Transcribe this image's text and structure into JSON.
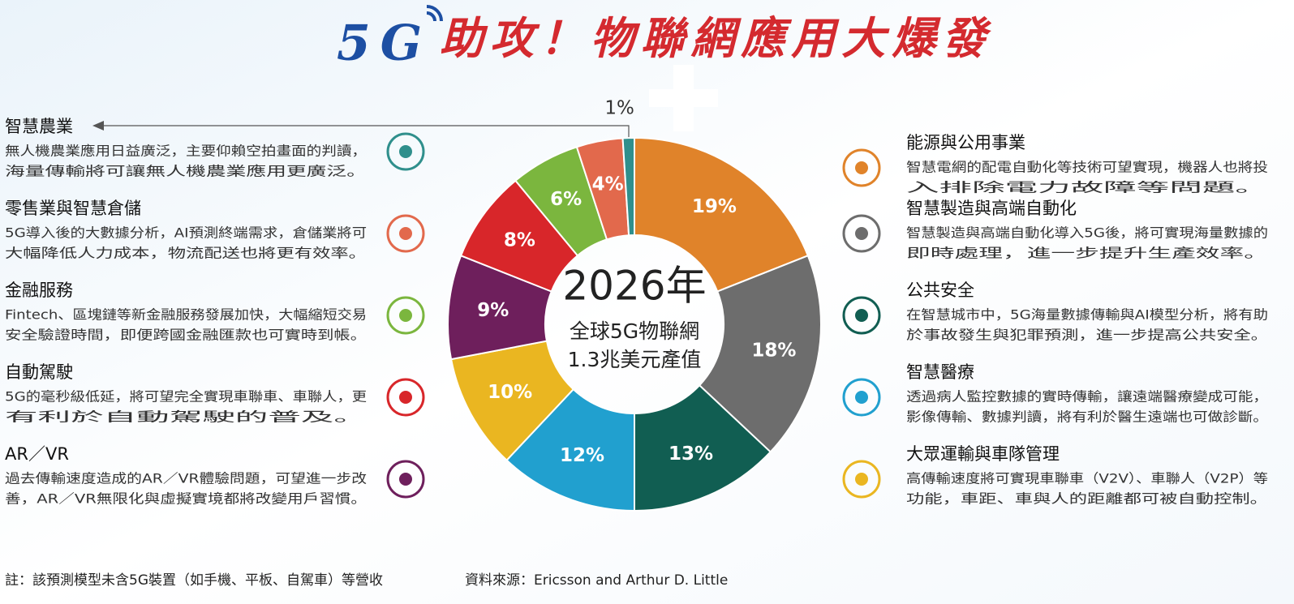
{
  "chart_data": {
    "type": "donut",
    "title_5g": "5G",
    "title": "助攻！物聯網應用大爆發",
    "center_text": [
      "2026年",
      "全球5G物聯網",
      "1.3兆美元產值"
    ],
    "categories": [
      "能源與公用事業",
      "智慧製造與高端自動化",
      "公共安全",
      "智慧醫療",
      "大眾運輸與車隊管理",
      "AR／VR",
      "自動駕駛",
      "金融服務",
      "零售業與智慧倉儲",
      "智慧農業"
    ],
    "values": [
      19,
      18,
      13,
      12,
      10,
      9,
      8,
      6,
      4,
      1
    ],
    "value_labels": [
      "19%",
      "18%",
      "13%",
      "12%",
      "10%",
      "9%",
      "8%",
      "6%",
      "4%",
      "1%"
    ],
    "colors": [
      "#e0832a",
      "#6d6d6d",
      "#115e52",
      "#21a0cf",
      "#eab621",
      "#6e1f5c",
      "#d8262a",
      "#7bb63e",
      "#e2694c",
      "#2f8f8c"
    ],
    "descriptions": [
      [
        "智慧電網的配電自動化等技術可望實現，機器人也將投",
        "入排除電力故障等問題。"
      ],
      [
        "智慧製造與高端自動化導入5G後，將可實現海量數據的",
        "即時處理，進一步提升生產效率。"
      ],
      [
        "在智慧城市中，5G海量數據傳輸與AI模型分析，將有助",
        "於事故發生與犯罪預測，進一步提高公共安全。"
      ],
      [
        "透過病人監控數據的實時傳輸，讓遠端醫療變成可能，",
        "影像傳輸、數據判讀，將有利於醫生遠端也可做診斷。"
      ],
      [
        "高傳輸速度將可實現車聯車（V2V）、車聯人（V2P）等",
        "功能，車距、車與人的距離都可被自動控制。"
      ],
      [
        "過去傳輸速度造成的AR／VR體驗問題，可望進一步改",
        "善，AR／VR無限化與虛擬實境都將改變用戶習慣。"
      ],
      [
        "5G的毫秒級低延，將可望完全實現車聯車、車聯人，更",
        "有利於自動駕駛的普及。"
      ],
      [
        "Fintech、區塊鏈等新金融服務發展加快，大幅縮短交易",
        "安全驗證時間，即便跨國金融匯款也可實時到帳。"
      ],
      [
        "5G導入後的大數據分析，AI預測終端需求，倉儲業將可",
        "大幅降低人力成本，物流配送也將更有效率。"
      ],
      [
        "無人機農業應用日益廣泛，主要仰賴空拍畫面的判讀，",
        "海量傳輸將可讓無人機農業應用更廣泛。"
      ]
    ],
    "note": "註：該預測模型未含5G裝置（如手機、平板、自駕車）等營收",
    "source": "資料來源：Ericsson and Arthur D. Little"
  }
}
